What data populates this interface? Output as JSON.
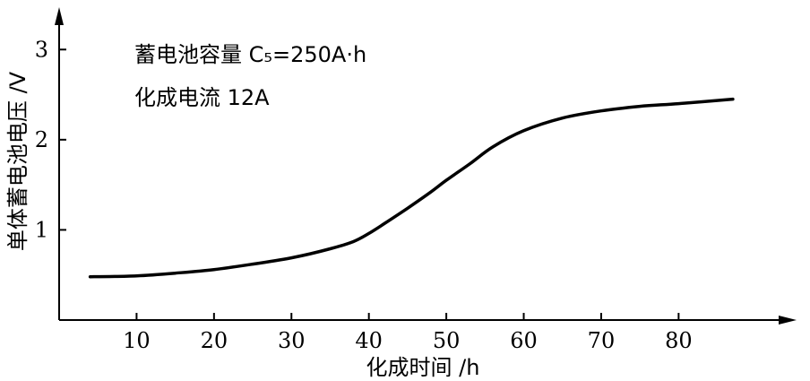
{
  "chart_data": {
    "type": "line",
    "xlabel": "化成时间 /h",
    "ylabel": "单体蓄电池电压 /V",
    "annotation_lines": [
      "蓄电池容量 C₅=250A·h",
      "化成电流 12A"
    ],
    "xlim": [
      0,
      95
    ],
    "ylim": [
      0,
      3.45
    ],
    "x_ticks": [
      10,
      20,
      30,
      40,
      50,
      60,
      70,
      80
    ],
    "y_ticks": [
      1,
      2,
      3
    ],
    "grid": false,
    "series": [
      {
        "points": [
          [
            4,
            0.48
          ],
          [
            10,
            0.49
          ],
          [
            15,
            0.52
          ],
          [
            20,
            0.56
          ],
          [
            25,
            0.62
          ],
          [
            30,
            0.69
          ],
          [
            35,
            0.79
          ],
          [
            38,
            0.87
          ],
          [
            40,
            0.96
          ],
          [
            42,
            1.07
          ],
          [
            45,
            1.24
          ],
          [
            48,
            1.42
          ],
          [
            50,
            1.55
          ],
          [
            53,
            1.73
          ],
          [
            56,
            1.92
          ],
          [
            60,
            2.1
          ],
          [
            65,
            2.24
          ],
          [
            70,
            2.32
          ],
          [
            75,
            2.37
          ],
          [
            80,
            2.4
          ],
          [
            87,
            2.45
          ]
        ]
      }
    ]
  }
}
